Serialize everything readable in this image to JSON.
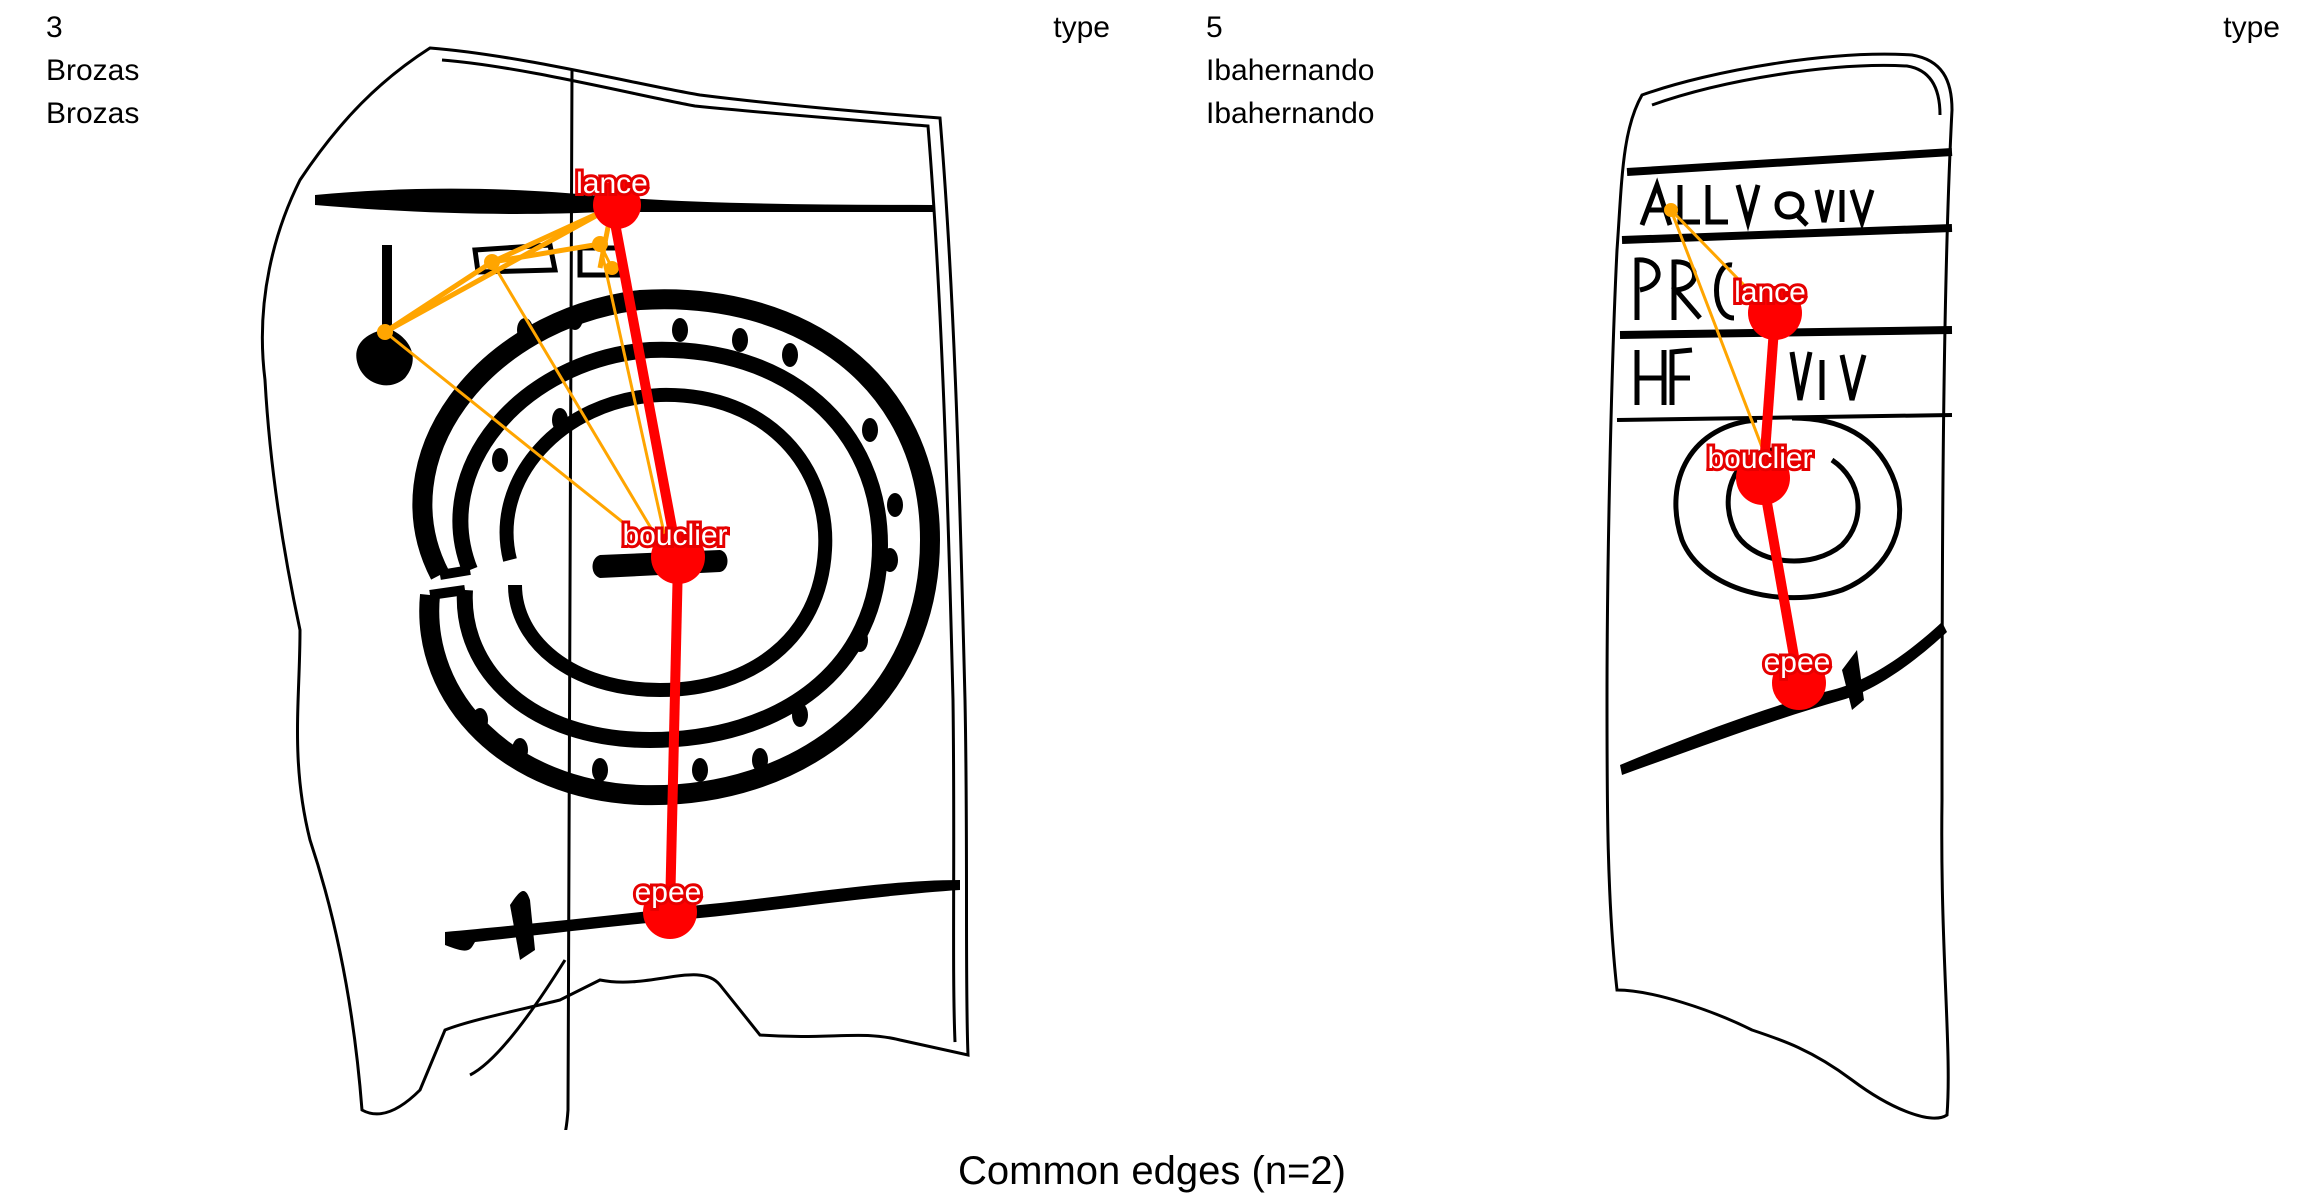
{
  "panels": [
    {
      "id": "3",
      "name": "Brozas",
      "subname": "Brozas",
      "type_label": "type",
      "nodes": [
        "lance",
        "bouclier",
        "epee"
      ]
    },
    {
      "id": "5",
      "name": "Ibahernando",
      "subname": "Ibahernando",
      "type_label": "type",
      "nodes": [
        "lance",
        "bouclier",
        "epee"
      ]
    }
  ],
  "common_edges": [
    [
      "lance",
      "bouclier"
    ],
    [
      "bouclier",
      "epee"
    ]
  ],
  "caption": "Common edges (n=2)",
  "colors": {
    "common_edge": "#ff0000",
    "other_edge": "#ffa500",
    "node": "#ff0000"
  }
}
